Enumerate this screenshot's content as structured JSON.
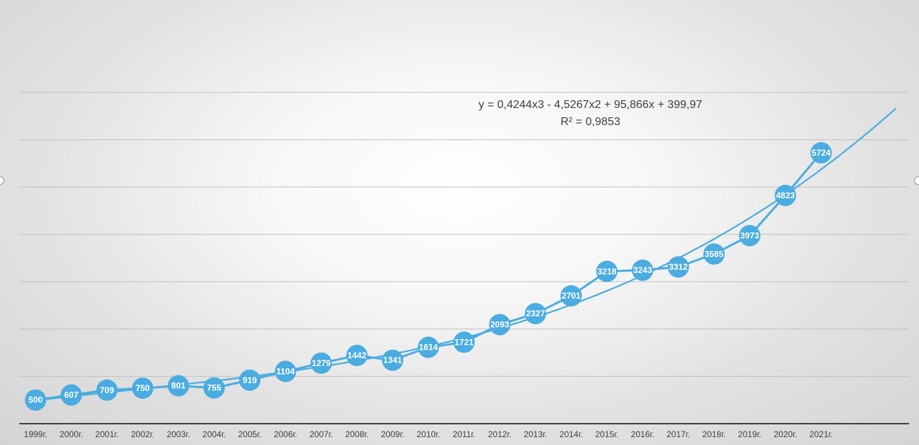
{
  "chart_data": {
    "type": "line",
    "title": "",
    "xlabel": "",
    "ylabel": "",
    "categories": [
      "1999г.",
      "2000г.",
      "2001г.",
      "2002г.",
      "2003г.",
      "2004г.",
      "2005г.",
      "2006г.",
      "2007г.",
      "2008г.",
      "2009г.",
      "2010г.",
      "2011г.",
      "2012г.",
      "2013г.",
      "2014г.",
      "2015г.",
      "2016г.",
      "2017г.",
      "2018г.",
      "2019г.",
      "2020г.",
      "2021г."
    ],
    "series": [
      {
        "values": [
          500,
          607,
          709,
          750,
          801,
          755,
          919,
          1104,
          1279,
          1442,
          1341,
          1614,
          1721,
          2093,
          2327,
          2701,
          3218,
          3243,
          3312,
          3585,
          3973,
          4823,
          5724
        ],
        "point_labels": [
          "500",
          "607",
          "709",
          "750",
          "801",
          "755",
          "919",
          "1104",
          "1279",
          "1442",
          "1341",
          "1614",
          "1721",
          "2093",
          "2327",
          "2701",
          "3218",
          "3243",
          "3312",
          "3585",
          "3973",
          "4823",
          "5724"
        ]
      }
    ],
    "trendline": {
      "type": "polynomial",
      "order": 3,
      "coefficients": [
        0.4244,
        -4.5267,
        95.866,
        399.97
      ],
      "equation": "y = 0,4244x3 - 4,5267x2 + 95,866x + 399,97",
      "r_squared": "R² = 0,9853"
    },
    "ylim": [
      0,
      7000
    ],
    "grid": true,
    "legend": "none",
    "colors": {
      "series": "#4aace0",
      "trendline": "#4aace0",
      "gridline": "#bfbfbf",
      "axis": "#404040",
      "point_label": "#ffffff"
    }
  }
}
